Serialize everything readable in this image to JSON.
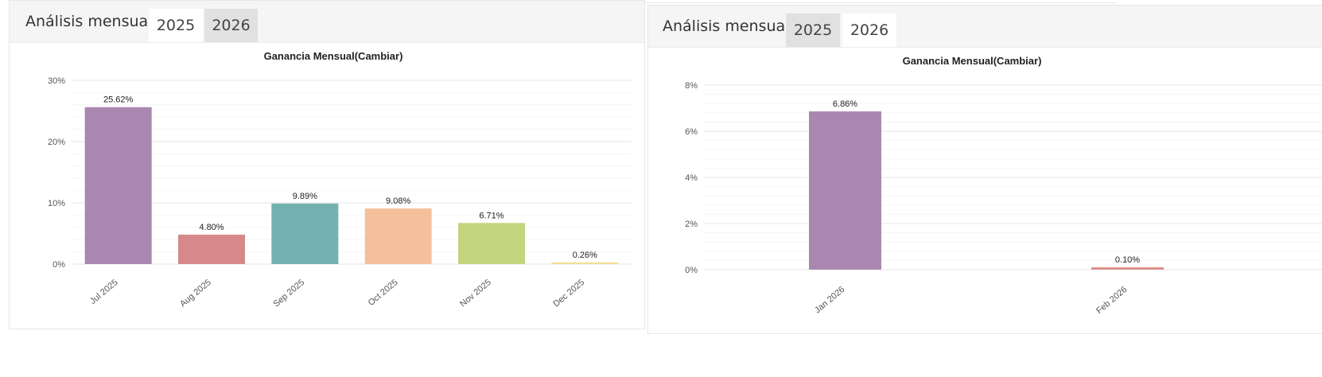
{
  "colors": {
    "purple": "#aa87b1",
    "rose": "#d5898a",
    "teal": "#72b3b2",
    "peach": "#f4c09b",
    "lime": "#c3d57d",
    "yellow": "#f4dd92",
    "salmon": "#dc8e89",
    "grid": "#ebebeb",
    "tab_active_bg": "#ffffff",
    "tab_inactive_bg": "#e1e1e1"
  },
  "panels": [
    {
      "header": {
        "title": "Análisis mensual",
        "tabs": [
          {
            "label": "2025",
            "active": true
          },
          {
            "label": "2026",
            "active": false
          }
        ]
      },
      "chart_data": {
        "type": "bar",
        "title": "Ganancia Mensual(Cambiar)",
        "categories": [
          "Jul 2025",
          "Aug 2025",
          "Sep 2025",
          "Oct 2025",
          "Nov 2025",
          "Dec 2025"
        ],
        "values": [
          25.62,
          4.8,
          9.89,
          9.08,
          6.71,
          0.26
        ],
        "value_labels": [
          "25.62%",
          "4.80%",
          "9.89%",
          "9.08%",
          "6.71%",
          "0.26%"
        ],
        "bar_colors": [
          "#aa87b1",
          "#d5898a",
          "#72b3b2",
          "#f4c09b",
          "#c3d57d",
          "#f4dd92"
        ],
        "y_ticks": [
          0,
          10,
          20,
          30
        ],
        "y_tick_labels": [
          "0%",
          "10%",
          "20%",
          "30%"
        ],
        "ylim": [
          0,
          30
        ],
        "xlabel": "",
        "ylabel": "",
        "grid": true
      }
    },
    {
      "header": {
        "title": "Análisis mensual",
        "tabs": [
          {
            "label": "2025",
            "active": false
          },
          {
            "label": "2026",
            "active": true
          }
        ]
      },
      "chart_data": {
        "type": "bar",
        "title": "Ganancia Mensual(Cambiar)",
        "categories": [
          "Jan 2026",
          "Feb 2026"
        ],
        "values": [
          6.86,
          0.1
        ],
        "value_labels": [
          "6.86%",
          "0.10%"
        ],
        "bar_colors": [
          "#aa87b1",
          "#dc8e89"
        ],
        "y_ticks": [
          0,
          2,
          4,
          6,
          8
        ],
        "y_tick_labels": [
          "0%",
          "2%",
          "4%",
          "6%",
          "8%"
        ],
        "ylim": [
          0,
          8
        ],
        "xlabel": "",
        "ylabel": "",
        "grid": true
      }
    }
  ]
}
